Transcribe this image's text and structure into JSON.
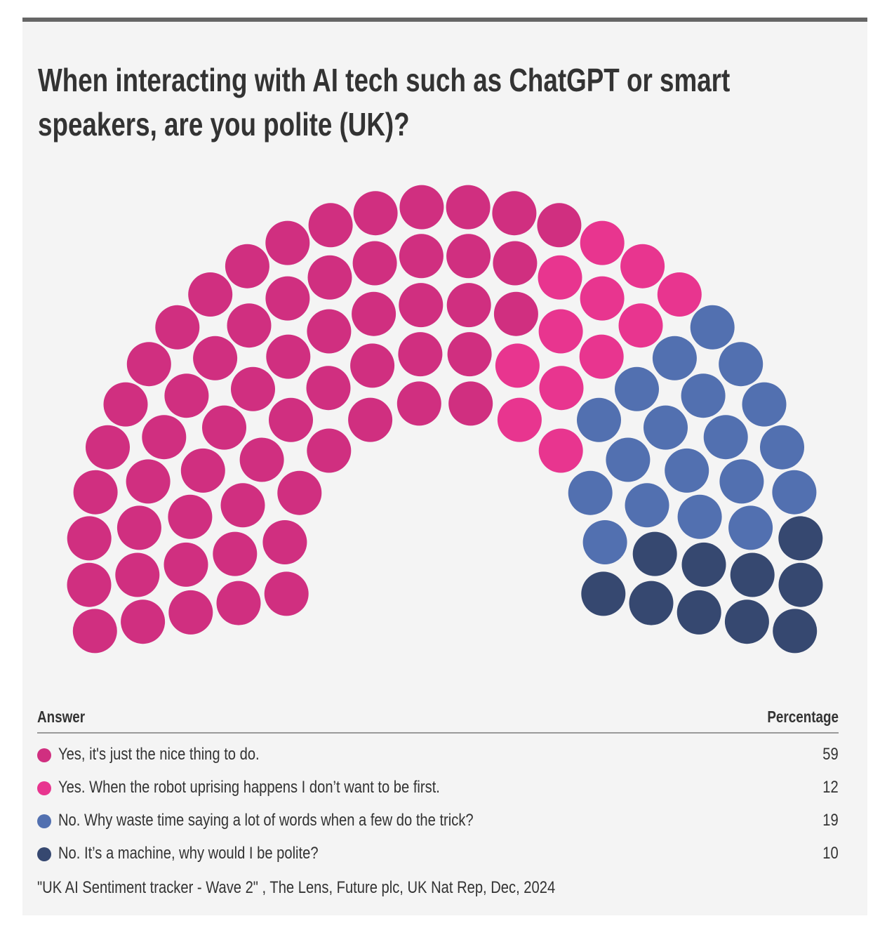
{
  "title_lines": [
    "When interacting with AI tech such as ChatGPT or smart",
    "speakers, are you polite (UK)?"
  ],
  "legend": {
    "header_answer": "Answer",
    "header_percentage": "Percentage",
    "rows": [
      {
        "label": "Yes, it's just the nice thing to do.",
        "value": "59",
        "color": "#d02f80"
      },
      {
        "label": "Yes. When the robot uprising happens I don’t want to be first.",
        "value": "12",
        "color": "#e8358f"
      },
      {
        "label": "No. Why waste time saying a lot of words when a few do the trick?",
        "value": "19",
        "color": "#5270b0"
      },
      {
        "label": "No. It’s a machine, why would I be polite?",
        "value": "10",
        "color": "#364870"
      }
    ]
  },
  "source": "\"UK AI Sentiment tracker - Wave 2\" , The Lens, Future plc, UK Nat Rep, Dec, 2024",
  "chart_data": {
    "type": "parliament",
    "title": "When interacting with AI tech such as ChatGPT or smart speakers, are you polite (UK)?",
    "total_seats": 100,
    "rows": 5,
    "categories": [
      "Yes, it's just the nice thing to do.",
      "Yes. When the robot uprising happens I don’t want to be first.",
      "No. Why waste time saying a lot of words when a few do the trick?",
      "No. It’s a machine, why would I be polite?"
    ],
    "values": [
      59,
      12,
      19,
      10
    ],
    "colors": [
      "#d02f80",
      "#e8358f",
      "#5270b0",
      "#364870"
    ],
    "unit": "percent",
    "legend": "bottom"
  }
}
